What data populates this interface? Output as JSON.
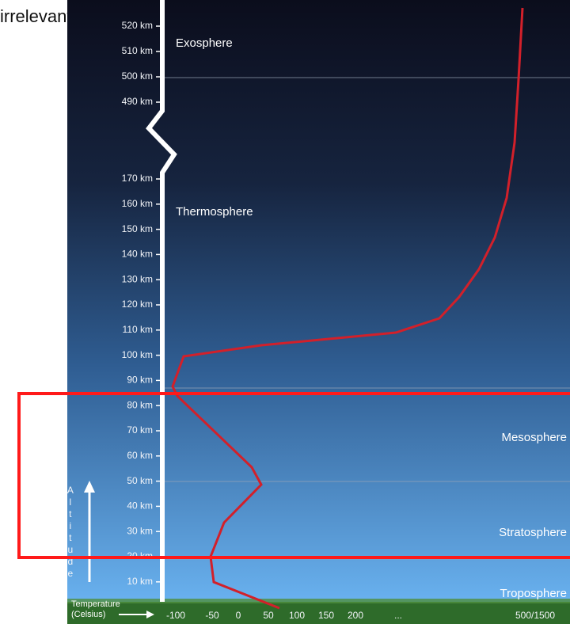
{
  "top_note": "irrelevant",
  "altitude_labels_upper": [
    "520 km",
    "510 km",
    "500 km",
    "490 km"
  ],
  "altitude_labels_lower": [
    "170 km",
    "160 km",
    "150 km",
    "140 km",
    "130 km",
    "120 km",
    "110 km",
    "100 km",
    "90 km",
    "80 km",
    "70 km",
    "60 km",
    "50 km",
    "40 km",
    "30 km",
    "20 km",
    "10 km"
  ],
  "layers": [
    "Exosphere",
    "Thermosphere",
    "Mesosphere",
    "Stratosphere",
    "Troposphere"
  ],
  "altitude_caption": "Altitude",
  "temperature_caption": [
    "Temperature",
    "(Celsius)"
  ],
  "temperature_labels": [
    "-100",
    "-50",
    "0",
    "50",
    "100",
    "150",
    "200",
    "...",
    "500/1500"
  ]
}
